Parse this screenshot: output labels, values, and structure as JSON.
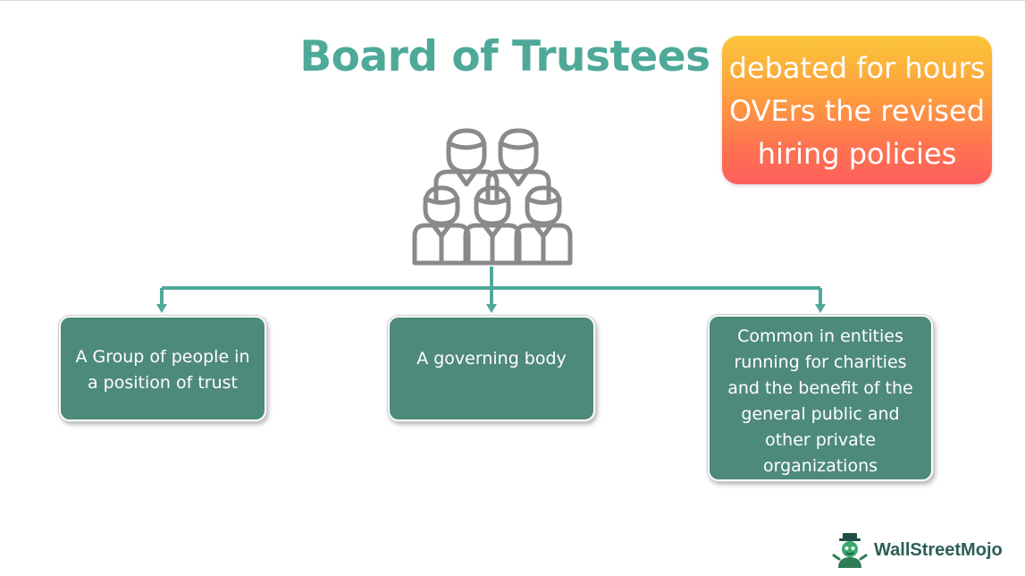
{
  "title": "Board of Trustees",
  "sticker": {
    "lines": [
      "debated for hours",
      "OVErs the revised",
      "hiring policies"
    ]
  },
  "icon": "group-of-people-icon",
  "boxes": [
    {
      "lines": [
        "A Group of people in",
        "a position of trust"
      ]
    },
    {
      "lines": [
        "A governing body"
      ]
    },
    {
      "lines": [
        "Common in entities",
        "running for charities",
        "and the benefit of the",
        "general public and",
        "other private",
        "organizations"
      ]
    }
  ],
  "logo": {
    "text": "WallStreetMojo",
    "icon": "mascot-icon"
  },
  "colors": {
    "title": "#4fa999",
    "box": "#4e8a7c",
    "connector": "#4fa999",
    "icon": "#8a8a8a",
    "sticker_top": "#fcc63a",
    "sticker_bottom": "#fe5f5c"
  }
}
